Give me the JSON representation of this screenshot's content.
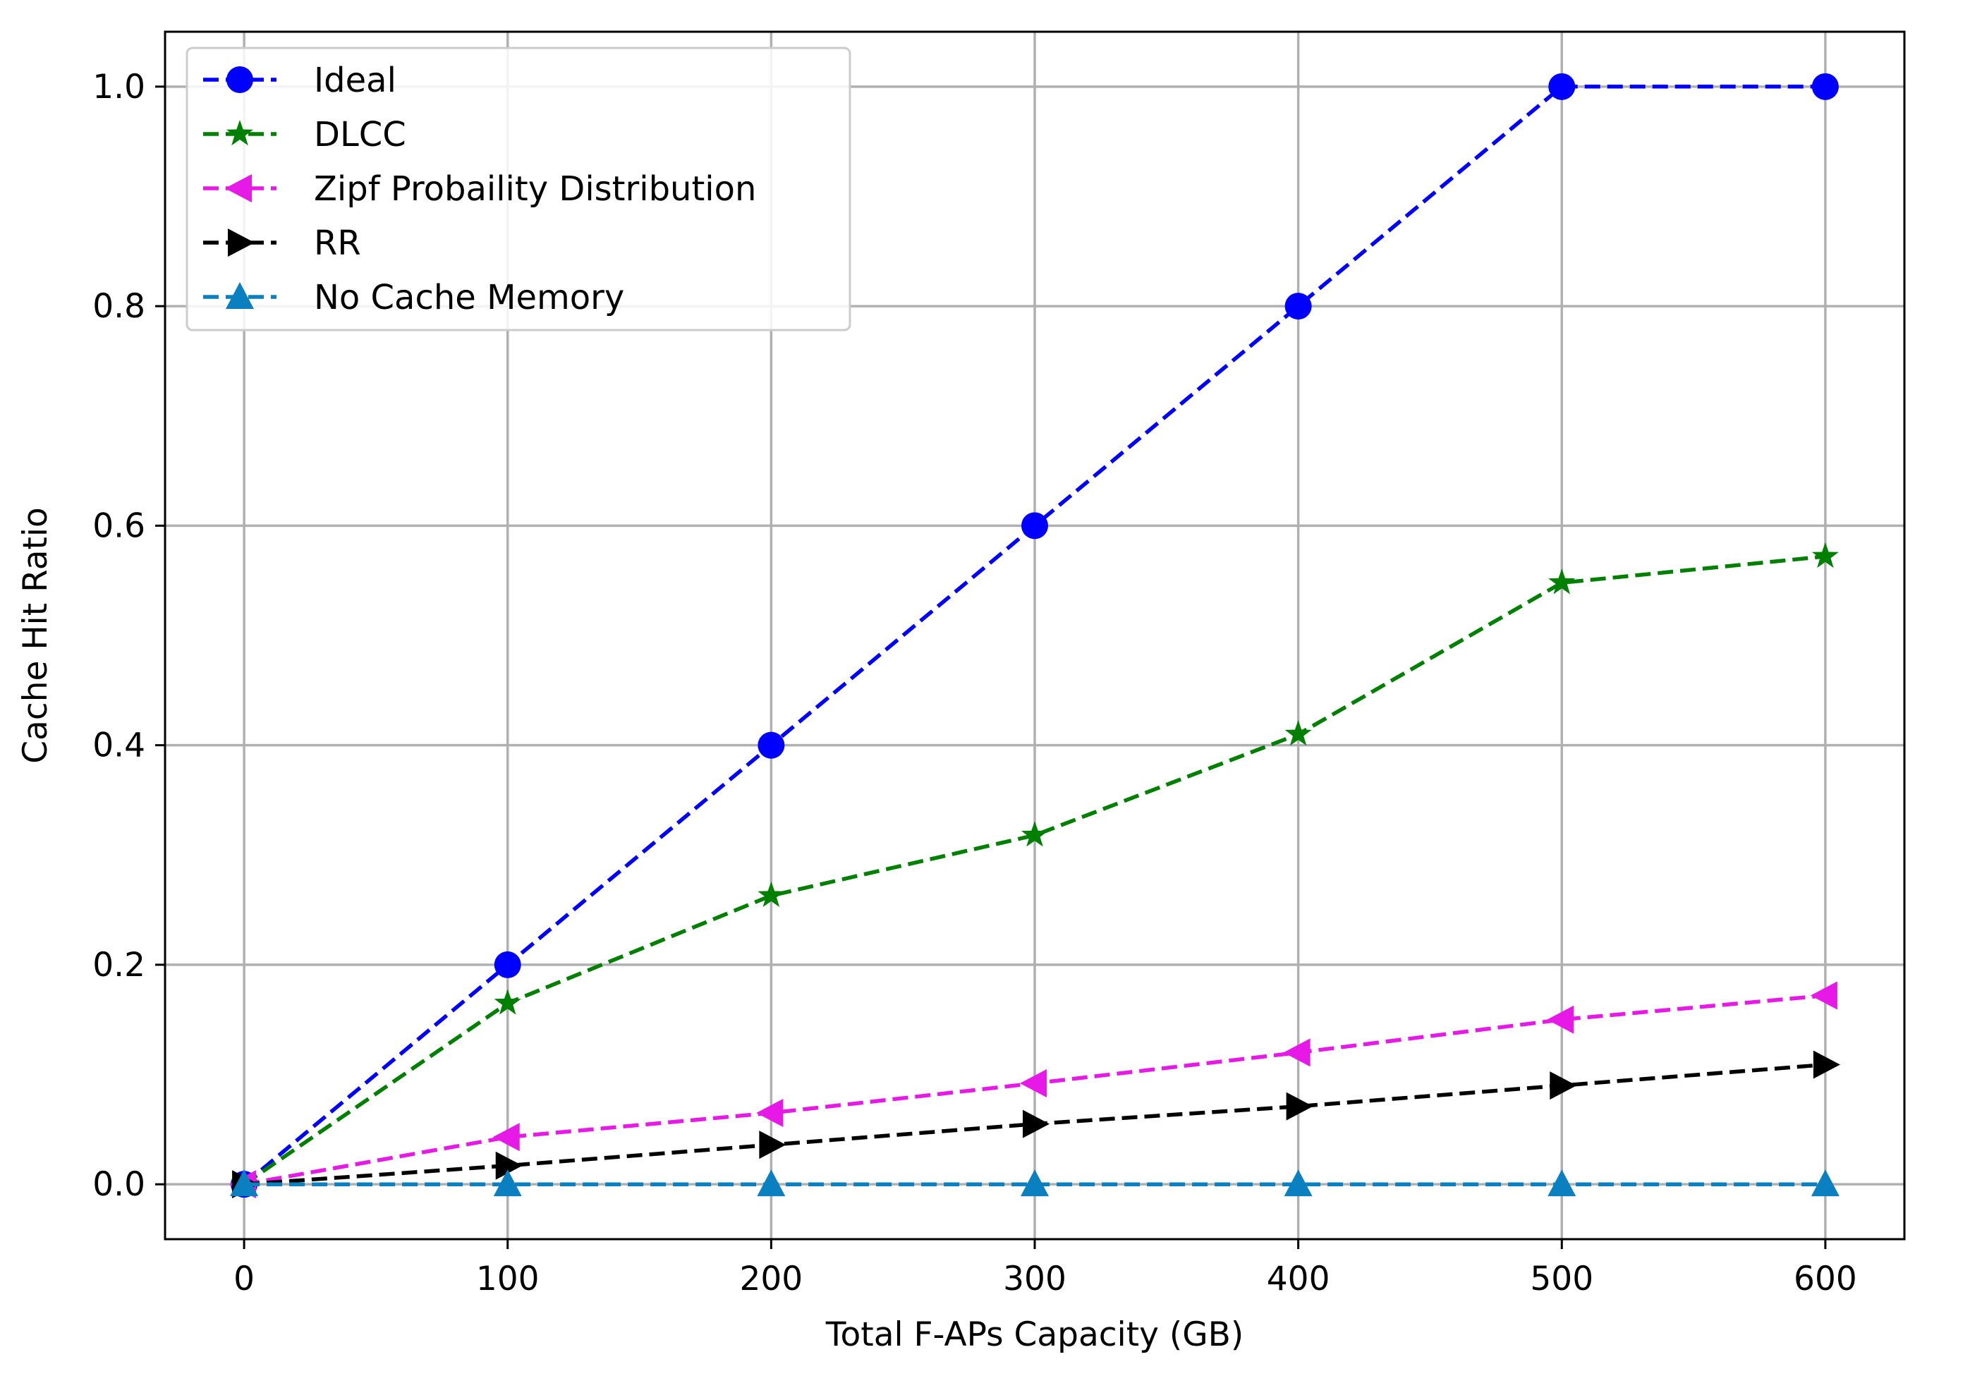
{
  "chart_data": {
    "type": "line",
    "title": "",
    "xlabel": "Total F-APs Capacity (GB)",
    "ylabel": "Cache Hit Ratio",
    "x": [
      0,
      100,
      200,
      300,
      400,
      500,
      600
    ],
    "xlim": [
      -30,
      630
    ],
    "ylim": [
      -0.05,
      1.05
    ],
    "xticks": [
      "0",
      "100",
      "200",
      "300",
      "400",
      "500",
      "600"
    ],
    "yticks": [
      "0.0",
      "0.2",
      "0.4",
      "0.6",
      "0.8",
      "1.0"
    ],
    "grid": true,
    "legend_position": "upper-left",
    "series": [
      {
        "name": "Ideal",
        "color": "#0000ff",
        "marker": "circle",
        "values": [
          0.0,
          0.2,
          0.4,
          0.6,
          0.8,
          1.0,
          1.0
        ]
      },
      {
        "name": "DLCC",
        "color": "#008000",
        "marker": "star",
        "values": [
          0.0,
          0.165,
          0.263,
          0.318,
          0.41,
          0.548,
          0.572
        ]
      },
      {
        "name": "Zipf Probaility Distribution",
        "color": "#e619e6",
        "marker": "triangle-left",
        "values": [
          0.0,
          0.043,
          0.065,
          0.092,
          0.12,
          0.15,
          0.172
        ]
      },
      {
        "name": "RR",
        "color": "#000000",
        "marker": "triangle-right",
        "values": [
          0.0,
          0.017,
          0.036,
          0.055,
          0.071,
          0.09,
          0.109
        ]
      },
      {
        "name": "No Cache Memory",
        "color": "#0a80c0",
        "marker": "triangle-up",
        "values": [
          0.0,
          0.0,
          0.0,
          0.0,
          0.0,
          0.0,
          0.0
        ]
      }
    ]
  }
}
